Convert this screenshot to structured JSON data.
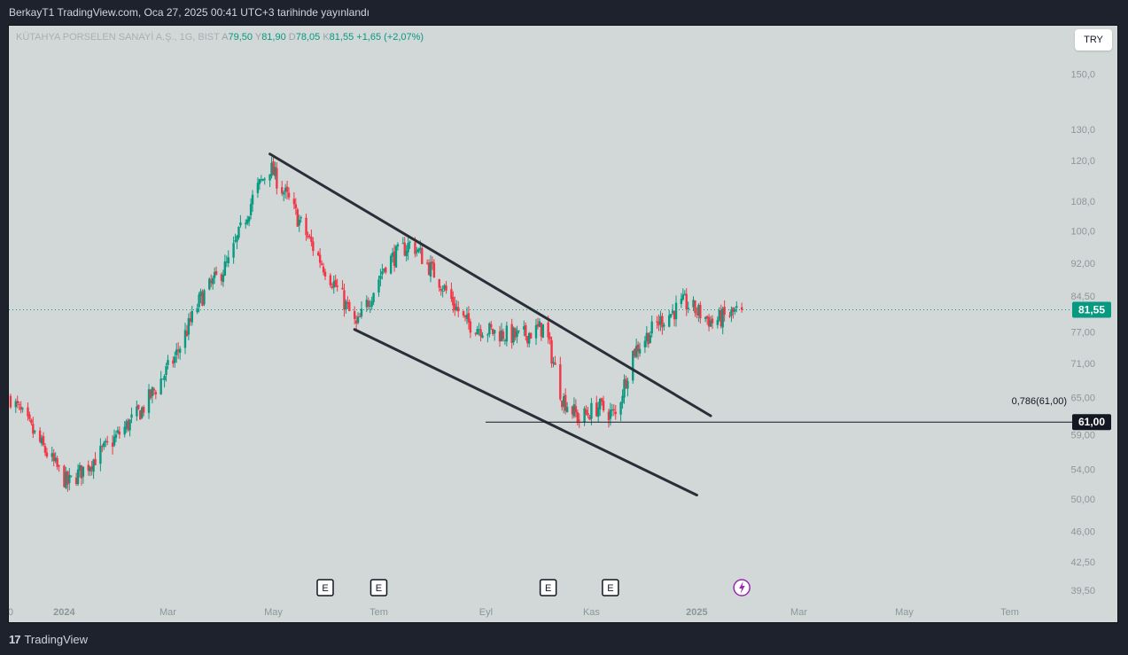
{
  "header": {
    "publish_text": "BerkayT1 TradingView.com, Oca 27, 2025 00:41 UTC+3 tarihinde yayınlandı"
  },
  "legend": {
    "symbol": "KÜTAHYA PORSELEN SANAYİ A.Ş., 1G, BIST",
    "open_label": "A",
    "open_value": "79,50",
    "high_label": "Y",
    "high_value": "81,90",
    "low_label": "D",
    "low_value": "78,05",
    "close_label": "K",
    "close_value": "81,55",
    "change": "+1,65 (+2,07%)"
  },
  "currency_button": "TRY",
  "price_axis": {
    "labels": [
      "150,0",
      "130,0",
      "120,0",
      "108,0",
      "100,0",
      "92,00",
      "84,50",
      "77,00",
      "71,00",
      "65,00",
      "59,00",
      "54,00",
      "50,00",
      "46,00",
      "42,50",
      "39,50"
    ],
    "last_price_tag": "81,55",
    "level_tag": "61,00",
    "fib_label": "0,786(61,00)"
  },
  "time_axis": {
    "labels": [
      {
        "text": "0",
        "bold": false
      },
      {
        "text": "2024",
        "bold": true
      },
      {
        "text": "Mar",
        "bold": false
      },
      {
        "text": "May",
        "bold": false
      },
      {
        "text": "Tem",
        "bold": false
      },
      {
        "text": "Eyl",
        "bold": false
      },
      {
        "text": "Kas",
        "bold": false
      },
      {
        "text": "2025",
        "bold": true
      },
      {
        "text": "Mar",
        "bold": false
      },
      {
        "text": "May",
        "bold": false
      },
      {
        "text": "Tem",
        "bold": false
      }
    ]
  },
  "event_markers": [
    "E",
    "E",
    "E",
    "E"
  ],
  "dividend_icon": "lightning-icon",
  "footer": {
    "brand": "TradingView"
  },
  "colors": {
    "up": "#089981",
    "down": "#f23645",
    "background": "#d1d8d7",
    "frame": "#1e222d",
    "trendline": "#2a2e39",
    "accent_purple": "#9c27b0"
  },
  "chart_data": {
    "type": "candlestick",
    "symbol": "KÜTAHYA PORSELEN SANAYİ A.Ş.",
    "interval": "1G",
    "last_close": 81.55,
    "log_scale": true,
    "ylim": [
      38.5,
      170
    ],
    "path_points": [
      {
        "date": "2023-12-01",
        "price": 65.0
      },
      {
        "date": "2023-12-20",
        "price": 57.0
      },
      {
        "date": "2024-01-03",
        "price": 52.0
      },
      {
        "date": "2024-01-25",
        "price": 57.0
      },
      {
        "date": "2024-02-15",
        "price": 63.0
      },
      {
        "date": "2024-03-05",
        "price": 72.0
      },
      {
        "date": "2024-03-20",
        "price": 84.0
      },
      {
        "date": "2024-04-05",
        "price": 92.0
      },
      {
        "date": "2024-04-20",
        "price": 110.0
      },
      {
        "date": "2024-04-29",
        "price": 118.0
      },
      {
        "date": "2024-05-10",
        "price": 108.0
      },
      {
        "date": "2024-05-25",
        "price": 95.0
      },
      {
        "date": "2024-06-10",
        "price": 84.0
      },
      {
        "date": "2024-06-18",
        "price": 78.0
      },
      {
        "date": "2024-07-05",
        "price": 92.0
      },
      {
        "date": "2024-07-20",
        "price": 97.0
      },
      {
        "date": "2024-08-05",
        "price": 88.0
      },
      {
        "date": "2024-08-20",
        "price": 79.0
      },
      {
        "date": "2024-09-05",
        "price": 77.0
      },
      {
        "date": "2024-09-20",
        "price": 76.0
      },
      {
        "date": "2024-10-05",
        "price": 78.0
      },
      {
        "date": "2024-10-15",
        "price": 65.0
      },
      {
        "date": "2024-10-25",
        "price": 61.5
      },
      {
        "date": "2024-11-05",
        "price": 63.5
      },
      {
        "date": "2024-11-15",
        "price": 62.0
      },
      {
        "date": "2024-11-25",
        "price": 73.0
      },
      {
        "date": "2024-12-10",
        "price": 79.0
      },
      {
        "date": "2024-12-25",
        "price": 83.0
      },
      {
        "date": "2025-01-10",
        "price": 79.0
      },
      {
        "date": "2025-01-27",
        "price": 81.55
      }
    ],
    "lines": [
      {
        "name": "upper-channel",
        "from": {
          "date": "2024-04-29",
          "price": 122.0
        },
        "to": {
          "date": "2025-01-09",
          "price": 62.0
        }
      },
      {
        "name": "lower-channel",
        "from": {
          "date": "2024-06-17",
          "price": 77.5
        },
        "to": {
          "date": "2025-01-01",
          "price": 50.5
        }
      },
      {
        "name": "fib-0.786",
        "from": {
          "date": "2024-09-01",
          "price": 61.0
        },
        "to": {
          "date": "2025-07-31",
          "price": 61.0
        }
      }
    ],
    "events": [
      "2024-05-31",
      "2024-07-01",
      "2024-10-07",
      "2024-11-12"
    ],
    "dividend": "2025-01-27"
  }
}
